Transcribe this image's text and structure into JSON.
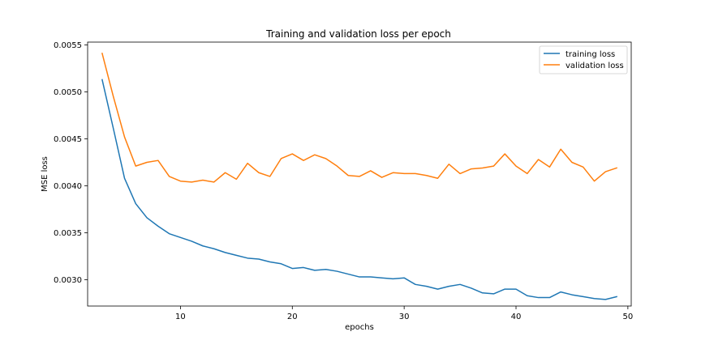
{
  "chart_data": {
    "type": "line",
    "title": "Training and validation loss per epoch",
    "xlabel": "epochs",
    "ylabel": "MSE loss",
    "xlim": [
      1.7,
      50.3
    ],
    "ylim": [
      0.00272,
      0.00553
    ],
    "xticks": [
      10,
      20,
      30,
      40,
      50
    ],
    "xtick_labels": [
      "10",
      "20",
      "30",
      "40",
      "50"
    ],
    "yticks": [
      0.003,
      0.0035,
      0.004,
      0.0045,
      0.005,
      0.0055
    ],
    "ytick_labels": [
      "0.0030",
      "0.0035",
      "0.0040",
      "0.0045",
      "0.0050",
      "0.0055"
    ],
    "grid": false,
    "legend_position": "top-right",
    "x": [
      3,
      4,
      5,
      6,
      7,
      8,
      9,
      10,
      11,
      12,
      13,
      14,
      15,
      16,
      17,
      18,
      19,
      20,
      21,
      22,
      23,
      24,
      25,
      26,
      27,
      28,
      29,
      30,
      31,
      32,
      33,
      34,
      35,
      36,
      37,
      38,
      39,
      40,
      41,
      42,
      43,
      44,
      45,
      46,
      47,
      48,
      49
    ],
    "series": [
      {
        "name": "training loss",
        "color": "#1f77b4",
        "values": [
          0.00513,
          0.00461,
          0.00408,
          0.00381,
          0.00366,
          0.00357,
          0.00349,
          0.00345,
          0.00341,
          0.00336,
          0.00333,
          0.00329,
          0.00326,
          0.00323,
          0.00322,
          0.00319,
          0.00317,
          0.00312,
          0.00313,
          0.0031,
          0.00311,
          0.00309,
          0.00306,
          0.00303,
          0.00303,
          0.00302,
          0.00301,
          0.00302,
          0.00295,
          0.00293,
          0.0029,
          0.00293,
          0.00295,
          0.00291,
          0.00286,
          0.00285,
          0.0029,
          0.0029,
          0.00283,
          0.00281,
          0.00281,
          0.00287,
          0.00284,
          0.00282,
          0.0028,
          0.00279,
          0.00282
        ]
      },
      {
        "name": "validation loss",
        "color": "#ff7f0e",
        "values": [
          0.00541,
          0.00495,
          0.00452,
          0.00421,
          0.00425,
          0.00427,
          0.0041,
          0.00405,
          0.00404,
          0.00406,
          0.00404,
          0.00414,
          0.00407,
          0.00424,
          0.00414,
          0.0041,
          0.00429,
          0.00434,
          0.00427,
          0.00433,
          0.00429,
          0.00421,
          0.00411,
          0.0041,
          0.00416,
          0.00409,
          0.00414,
          0.00413,
          0.00413,
          0.00411,
          0.00408,
          0.00423,
          0.00413,
          0.00418,
          0.00419,
          0.00421,
          0.00434,
          0.00421,
          0.00413,
          0.00428,
          0.0042,
          0.00439,
          0.00425,
          0.0042,
          0.00405,
          0.00415,
          0.00419
        ]
      }
    ]
  }
}
